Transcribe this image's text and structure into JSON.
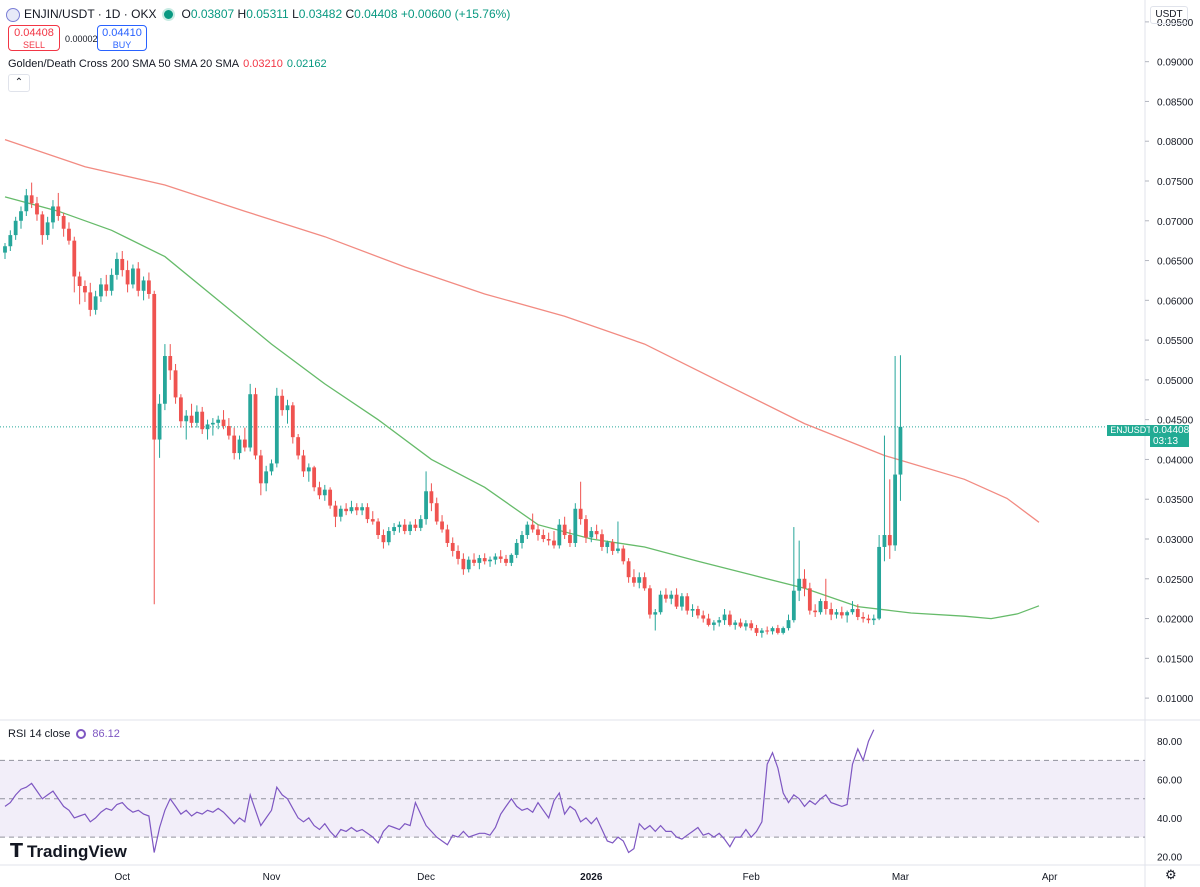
{
  "header": {
    "symbol": "ENJIN/USDT · 1D · OKX",
    "open_label": "O",
    "open": "0.03807",
    "high_label": "H",
    "high": "0.05311",
    "low_label": "L",
    "low": "0.03482",
    "close_label": "C",
    "close": "0.04408",
    "change": "+0.00600 (+15.76%)"
  },
  "trade": {
    "sell_price": "0.04408",
    "sell_label": "SELL",
    "spread": "0.00002",
    "buy_price": "0.04410",
    "buy_label": "BUY"
  },
  "indicator": {
    "label": "Golden/Death Cross 200 SMA 50 SMA 20 SMA",
    "sma200": "0.03210",
    "sma50": "0.02162"
  },
  "rsi": {
    "label": "RSI 14 close",
    "value": "86.12"
  },
  "price_scale": {
    "unit": "USDT",
    "ticks": [
      "0.09500",
      "0.09000",
      "0.08500",
      "0.08000",
      "0.07500",
      "0.07000",
      "0.06500",
      "0.06000",
      "0.05500",
      "0.05000",
      "0.04500",
      "0.04000",
      "0.03500",
      "0.03000",
      "0.02500",
      "0.02000",
      "0.01500",
      "0.01000"
    ]
  },
  "rsi_scale": {
    "ticks": [
      "80.00",
      "60.00",
      "40.00",
      "20.00"
    ]
  },
  "last_price_tag": {
    "symbol": "ENJUSDT",
    "price": "0.04408",
    "countdown": "03:13"
  },
  "time_axis": [
    "Oct",
    "Nov",
    "Dec",
    "2026",
    "Feb",
    "Mar",
    "Apr"
  ],
  "branding": {
    "name": "TradingView"
  },
  "colors": {
    "up": "#26a69a",
    "down": "#ef5350",
    "sma200": "#f28b82",
    "sma50": "#66bb6a",
    "rsi": "#7e57c2"
  },
  "chart_data": {
    "type": "candlestick",
    "interval": "1D",
    "ylim": [
      0.0075,
      0.0975
    ],
    "rsi_ylim": [
      16,
      90
    ],
    "rsi_bands": [
      30,
      50,
      70
    ],
    "candles": [
      [
        0.066,
        0.0672,
        0.0652,
        0.0668
      ],
      [
        0.0668,
        0.0688,
        0.0662,
        0.0682
      ],
      [
        0.0682,
        0.0705,
        0.0676,
        0.07
      ],
      [
        0.07,
        0.0718,
        0.069,
        0.0712
      ],
      [
        0.0712,
        0.074,
        0.0706,
        0.0732
      ],
      [
        0.0732,
        0.0748,
        0.0716,
        0.0722
      ],
      [
        0.0722,
        0.073,
        0.07,
        0.0708
      ],
      [
        0.0708,
        0.0712,
        0.067,
        0.0682
      ],
      [
        0.0682,
        0.0705,
        0.0676,
        0.0698
      ],
      [
        0.0698,
        0.0726,
        0.069,
        0.0718
      ],
      [
        0.0718,
        0.0735,
        0.07,
        0.0706
      ],
      [
        0.0706,
        0.071,
        0.068,
        0.069
      ],
      [
        0.069,
        0.0698,
        0.067,
        0.0675
      ],
      [
        0.0675,
        0.068,
        0.061,
        0.063
      ],
      [
        0.063,
        0.0636,
        0.0595,
        0.0618
      ],
      [
        0.0618,
        0.0625,
        0.0598,
        0.061
      ],
      [
        0.061,
        0.0622,
        0.058,
        0.0588
      ],
      [
        0.0588,
        0.0612,
        0.0582,
        0.0605
      ],
      [
        0.0605,
        0.0628,
        0.0598,
        0.062
      ],
      [
        0.062,
        0.0632,
        0.0605,
        0.0612
      ],
      [
        0.0612,
        0.064,
        0.0606,
        0.0632
      ],
      [
        0.0632,
        0.066,
        0.0626,
        0.0652
      ],
      [
        0.0652,
        0.0662,
        0.063,
        0.0638
      ],
      [
        0.0638,
        0.065,
        0.061,
        0.062
      ],
      [
        0.062,
        0.0645,
        0.0615,
        0.064
      ],
      [
        0.064,
        0.0648,
        0.0605,
        0.0612
      ],
      [
        0.0612,
        0.063,
        0.06,
        0.0625
      ],
      [
        0.0625,
        0.0635,
        0.0602,
        0.0608
      ],
      [
        0.0608,
        0.0612,
        0.0218,
        0.0425
      ],
      [
        0.0425,
        0.0482,
        0.0402,
        0.047
      ],
      [
        0.047,
        0.0545,
        0.0462,
        0.053
      ],
      [
        0.053,
        0.0545,
        0.05,
        0.0512
      ],
      [
        0.0512,
        0.052,
        0.047,
        0.0478
      ],
      [
        0.0478,
        0.0482,
        0.044,
        0.0448
      ],
      [
        0.0448,
        0.0462,
        0.0425,
        0.0455
      ],
      [
        0.0455,
        0.047,
        0.044,
        0.0446
      ],
      [
        0.0446,
        0.0468,
        0.044,
        0.046
      ],
      [
        0.046,
        0.0466,
        0.0432,
        0.0438
      ],
      [
        0.0438,
        0.045,
        0.0425,
        0.0444
      ],
      [
        0.0444,
        0.0452,
        0.043,
        0.0446
      ],
      [
        0.0446,
        0.0455,
        0.0438,
        0.045
      ],
      [
        0.045,
        0.0462,
        0.0438,
        0.0442
      ],
      [
        0.0442,
        0.0452,
        0.0425,
        0.043
      ],
      [
        0.043,
        0.044,
        0.04,
        0.0408
      ],
      [
        0.0408,
        0.043,
        0.04,
        0.0425
      ],
      [
        0.0425,
        0.044,
        0.041,
        0.0415
      ],
      [
        0.0415,
        0.0495,
        0.041,
        0.0482
      ],
      [
        0.0482,
        0.049,
        0.04,
        0.0405
      ],
      [
        0.0405,
        0.0412,
        0.0355,
        0.037
      ],
      [
        0.037,
        0.0392,
        0.036,
        0.0385
      ],
      [
        0.0385,
        0.04,
        0.038,
        0.0395
      ],
      [
        0.0395,
        0.049,
        0.039,
        0.048
      ],
      [
        0.048,
        0.0488,
        0.0455,
        0.0462
      ],
      [
        0.0462,
        0.0475,
        0.0445,
        0.0468
      ],
      [
        0.0468,
        0.0472,
        0.042,
        0.0428
      ],
      [
        0.0428,
        0.0432,
        0.04,
        0.0405
      ],
      [
        0.0405,
        0.0412,
        0.0378,
        0.0385
      ],
      [
        0.0385,
        0.0395,
        0.0372,
        0.039
      ],
      [
        0.039,
        0.0392,
        0.036,
        0.0365
      ],
      [
        0.0365,
        0.0372,
        0.035,
        0.0355
      ],
      [
        0.0355,
        0.0368,
        0.0348,
        0.0362
      ],
      [
        0.0362,
        0.0365,
        0.0338,
        0.0342
      ],
      [
        0.0342,
        0.0348,
        0.0315,
        0.0328
      ],
      [
        0.0328,
        0.0342,
        0.0322,
        0.0338
      ],
      [
        0.0338,
        0.0345,
        0.033,
        0.0335
      ],
      [
        0.0335,
        0.0348,
        0.0332,
        0.034
      ],
      [
        0.034,
        0.0345,
        0.033,
        0.0336
      ],
      [
        0.0336,
        0.0345,
        0.033,
        0.034
      ],
      [
        0.034,
        0.0345,
        0.032,
        0.0325
      ],
      [
        0.0325,
        0.0335,
        0.0318,
        0.0322
      ],
      [
        0.0322,
        0.0326,
        0.03,
        0.0305
      ],
      [
        0.0305,
        0.0312,
        0.0288,
        0.0296
      ],
      [
        0.0296,
        0.0315,
        0.0292,
        0.031
      ],
      [
        0.031,
        0.032,
        0.0305,
        0.0315
      ],
      [
        0.0315,
        0.0322,
        0.0308,
        0.0318
      ],
      [
        0.0318,
        0.0325,
        0.0306,
        0.031
      ],
      [
        0.031,
        0.0322,
        0.0305,
        0.0318
      ],
      [
        0.0318,
        0.0325,
        0.031,
        0.0314
      ],
      [
        0.0314,
        0.033,
        0.031,
        0.0325
      ],
      [
        0.0325,
        0.0385,
        0.0318,
        0.036
      ],
      [
        0.036,
        0.037,
        0.0335,
        0.0345
      ],
      [
        0.0345,
        0.0352,
        0.0318,
        0.0322
      ],
      [
        0.0322,
        0.033,
        0.0308,
        0.0312
      ],
      [
        0.0312,
        0.0318,
        0.029,
        0.0295
      ],
      [
        0.0295,
        0.0302,
        0.0278,
        0.0285
      ],
      [
        0.0285,
        0.0292,
        0.0268,
        0.0275
      ],
      [
        0.0275,
        0.0282,
        0.0255,
        0.0262
      ],
      [
        0.0262,
        0.0278,
        0.0258,
        0.0274
      ],
      [
        0.0274,
        0.0282,
        0.0266,
        0.027
      ],
      [
        0.027,
        0.028,
        0.0262,
        0.0276
      ],
      [
        0.0276,
        0.0282,
        0.0268,
        0.0272
      ],
      [
        0.0272,
        0.0278,
        0.0265,
        0.0274
      ],
      [
        0.0274,
        0.0282,
        0.0268,
        0.0278
      ],
      [
        0.0278,
        0.0286,
        0.027,
        0.0275
      ],
      [
        0.0275,
        0.028,
        0.0266,
        0.027
      ],
      [
        0.027,
        0.0282,
        0.0266,
        0.028
      ],
      [
        0.028,
        0.03,
        0.0276,
        0.0295
      ],
      [
        0.0295,
        0.031,
        0.0288,
        0.0305
      ],
      [
        0.0305,
        0.0322,
        0.03,
        0.0318
      ],
      [
        0.0318,
        0.0332,
        0.0308,
        0.0312
      ],
      [
        0.0312,
        0.0318,
        0.0298,
        0.0305
      ],
      [
        0.0305,
        0.0312,
        0.0296,
        0.03
      ],
      [
        0.03,
        0.0308,
        0.0292,
        0.0298
      ],
      [
        0.0298,
        0.031,
        0.0288,
        0.0292
      ],
      [
        0.0292,
        0.0325,
        0.0288,
        0.0318
      ],
      [
        0.0318,
        0.0328,
        0.03,
        0.0305
      ],
      [
        0.0305,
        0.0312,
        0.029,
        0.0295
      ],
      [
        0.0295,
        0.0345,
        0.029,
        0.0338
      ],
      [
        0.0338,
        0.0372,
        0.0318,
        0.0325
      ],
      [
        0.0325,
        0.033,
        0.0295,
        0.0302
      ],
      [
        0.0302,
        0.0315,
        0.0296,
        0.031
      ],
      [
        0.031,
        0.0318,
        0.03,
        0.0306
      ],
      [
        0.0306,
        0.0312,
        0.0285,
        0.029
      ],
      [
        0.029,
        0.0298,
        0.0282,
        0.0296
      ],
      [
        0.0296,
        0.03,
        0.028,
        0.0285
      ],
      [
        0.0285,
        0.0322,
        0.0282,
        0.0288
      ],
      [
        0.0288,
        0.0292,
        0.0268,
        0.0272
      ],
      [
        0.0272,
        0.0276,
        0.0245,
        0.0252
      ],
      [
        0.0252,
        0.0262,
        0.024,
        0.0245
      ],
      [
        0.0245,
        0.0258,
        0.0238,
        0.0252
      ],
      [
        0.0252,
        0.0258,
        0.0235,
        0.0238
      ],
      [
        0.0238,
        0.0242,
        0.02,
        0.0205
      ],
      [
        0.0205,
        0.0212,
        0.0185,
        0.0208
      ],
      [
        0.0208,
        0.0235,
        0.0205,
        0.023
      ],
      [
        0.023,
        0.0238,
        0.022,
        0.0225
      ],
      [
        0.0225,
        0.0235,
        0.0218,
        0.023
      ],
      [
        0.023,
        0.0238,
        0.0212,
        0.0215
      ],
      [
        0.0215,
        0.0232,
        0.021,
        0.0228
      ],
      [
        0.0228,
        0.0232,
        0.0205,
        0.021
      ],
      [
        0.021,
        0.0218,
        0.0202,
        0.0212
      ],
      [
        0.0212,
        0.0216,
        0.02,
        0.0204
      ],
      [
        0.0204,
        0.021,
        0.0195,
        0.02
      ],
      [
        0.02,
        0.0206,
        0.019,
        0.0192
      ],
      [
        0.0192,
        0.0198,
        0.0185,
        0.0195
      ],
      [
        0.0195,
        0.0202,
        0.019,
        0.0198
      ],
      [
        0.0198,
        0.0212,
        0.0192,
        0.0205
      ],
      [
        0.0205,
        0.021,
        0.019,
        0.0192
      ],
      [
        0.0192,
        0.0198,
        0.0186,
        0.0195
      ],
      [
        0.0195,
        0.02,
        0.0188,
        0.019
      ],
      [
        0.019,
        0.0198,
        0.0185,
        0.0194
      ],
      [
        0.0194,
        0.0198,
        0.0185,
        0.0188
      ],
      [
        0.0188,
        0.0192,
        0.0178,
        0.0182
      ],
      [
        0.0182,
        0.0188,
        0.0176,
        0.0185
      ],
      [
        0.0185,
        0.019,
        0.018,
        0.0184
      ],
      [
        0.0184,
        0.019,
        0.018,
        0.0188
      ],
      [
        0.0188,
        0.0192,
        0.018,
        0.0182
      ],
      [
        0.0182,
        0.019,
        0.018,
        0.0188
      ],
      [
        0.0188,
        0.0205,
        0.0185,
        0.0198
      ],
      [
        0.0198,
        0.0315,
        0.0195,
        0.0235
      ],
      [
        0.0235,
        0.0298,
        0.0222,
        0.025
      ],
      [
        0.025,
        0.0262,
        0.0228,
        0.0238
      ],
      [
        0.0238,
        0.0245,
        0.0205,
        0.021
      ],
      [
        0.021,
        0.0218,
        0.0202,
        0.0208
      ],
      [
        0.0208,
        0.0225,
        0.0205,
        0.0222
      ],
      [
        0.0222,
        0.025,
        0.0205,
        0.0212
      ],
      [
        0.0212,
        0.022,
        0.0198,
        0.0205
      ],
      [
        0.0205,
        0.0212,
        0.02,
        0.0208
      ],
      [
        0.0208,
        0.0215,
        0.02,
        0.0204
      ],
      [
        0.0204,
        0.021,
        0.0195,
        0.0208
      ],
      [
        0.0208,
        0.0222,
        0.0205,
        0.0212
      ],
      [
        0.0212,
        0.0218,
        0.0198,
        0.0202
      ],
      [
        0.0202,
        0.0208,
        0.0195,
        0.02
      ],
      [
        0.02,
        0.0205,
        0.0194,
        0.0198
      ],
      [
        0.0198,
        0.0205,
        0.0192,
        0.02
      ],
      [
        0.02,
        0.0305,
        0.0198,
        0.029
      ],
      [
        0.029,
        0.043,
        0.0272,
        0.0305
      ],
      [
        0.0305,
        0.0375,
        0.0275,
        0.0292
      ],
      [
        0.0292,
        0.053,
        0.0285,
        0.0381
      ],
      [
        0.0381,
        0.0531,
        0.0348,
        0.0441
      ]
    ],
    "sma200": [
      [
        0,
        0.0802
      ],
      [
        15,
        0.0768
      ],
      [
        30,
        0.0745
      ],
      [
        45,
        0.0712
      ],
      [
        60,
        0.068
      ],
      [
        75,
        0.0642
      ],
      [
        90,
        0.0608
      ],
      [
        105,
        0.058
      ],
      [
        120,
        0.0545
      ],
      [
        135,
        0.0495
      ],
      [
        150,
        0.0445
      ],
      [
        165,
        0.0405
      ],
      [
        180,
        0.0375
      ],
      [
        188,
        0.0351
      ],
      [
        194,
        0.0321
      ]
    ],
    "sma50": [
      [
        0,
        0.073
      ],
      [
        10,
        0.0712
      ],
      [
        20,
        0.0688
      ],
      [
        30,
        0.0655
      ],
      [
        40,
        0.06
      ],
      [
        50,
        0.0545
      ],
      [
        60,
        0.0495
      ],
      [
        70,
        0.045
      ],
      [
        80,
        0.04
      ],
      [
        90,
        0.0365
      ],
      [
        100,
        0.0318
      ],
      [
        110,
        0.03
      ],
      [
        120,
        0.029
      ],
      [
        130,
        0.0272
      ],
      [
        140,
        0.0255
      ],
      [
        150,
        0.0238
      ],
      [
        160,
        0.0215
      ],
      [
        170,
        0.0207
      ],
      [
        180,
        0.0203
      ],
      [
        185,
        0.02
      ],
      [
        190,
        0.0206
      ],
      [
        194,
        0.0216
      ]
    ],
    "rsi": [
      46,
      48,
      52,
      55,
      56,
      58,
      54,
      50,
      52,
      54,
      50,
      46,
      44,
      40,
      41,
      42,
      38,
      40,
      43,
      45,
      44,
      47,
      48,
      45,
      43,
      44,
      42,
      41,
      22,
      35,
      44,
      50,
      46,
      42,
      44,
      41,
      43,
      42,
      44,
      43,
      45,
      43,
      40,
      37,
      40,
      38,
      52,
      44,
      36,
      40,
      44,
      56,
      52,
      50,
      45,
      40,
      38,
      40,
      36,
      34,
      37,
      33,
      30,
      34,
      33,
      35,
      33,
      34,
      32,
      30,
      27,
      33,
      36,
      35,
      34,
      37,
      36,
      48,
      42,
      36,
      33,
      30,
      28,
      26,
      31,
      30,
      33,
      30,
      31,
      32,
      32,
      31,
      35,
      42,
      46,
      50,
      46,
      44,
      45,
      43,
      48,
      44,
      40,
      49,
      53,
      42,
      46,
      44,
      38,
      40,
      37,
      40,
      34,
      28,
      27,
      30,
      28,
      22,
      24,
      37,
      34,
      36,
      33,
      36,
      33,
      33,
      30,
      29,
      31,
      33,
      35,
      31,
      32,
      30,
      32,
      29,
      25,
      30,
      30,
      34,
      30,
      33,
      38,
      68,
      74,
      66,
      53,
      48,
      52,
      50,
      46,
      49,
      47,
      50,
      52,
      48,
      47,
      46,
      47,
      68,
      76,
      70,
      80,
      86
    ]
  }
}
